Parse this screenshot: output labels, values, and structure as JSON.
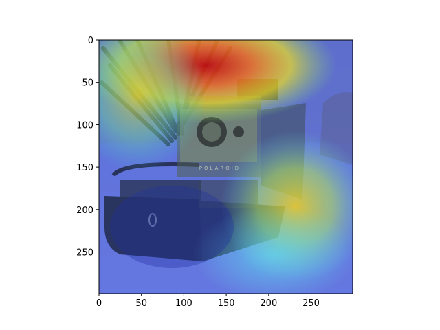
{
  "figure": {
    "image_subject": "grayscale photo of a folding Polaroid instant camera with its case, overlaid with a jet-colormap attention heatmap",
    "camera_brand_text": "POLAROID"
  },
  "chart_data": {
    "type": "heatmap",
    "title": "",
    "xlabel": "",
    "ylabel": "",
    "xlim": [
      0,
      299
    ],
    "ylim": [
      299,
      0
    ],
    "x_ticks": [
      "0",
      "50",
      "100",
      "150",
      "200",
      "250"
    ],
    "y_ticks": [
      "0",
      "50",
      "100",
      "150",
      "200",
      "250"
    ],
    "x_tick_values": [
      0,
      50,
      100,
      150,
      200,
      250
    ],
    "y_tick_values": [
      0,
      50,
      100,
      150,
      200,
      250
    ],
    "colormap": "jet",
    "hotspots": [
      {
        "label": "top-center",
        "x": 150,
        "y": 40,
        "intensity": 1.0
      },
      {
        "label": "right-center",
        "x": 230,
        "y": 200,
        "intensity": 0.75
      },
      {
        "label": "left-upper",
        "x": 50,
        "y": 80,
        "intensity": 0.6
      },
      {
        "label": "lower-right",
        "x": 200,
        "y": 250,
        "intensity": 0.35
      }
    ],
    "colors": {
      "background": "#ffffff",
      "axis": "#000000",
      "hot": "#d7191c",
      "warm": "#fdae61",
      "mid": "#ffffbf",
      "cool": "#80c8ff",
      "cold": "#3040c0"
    }
  }
}
